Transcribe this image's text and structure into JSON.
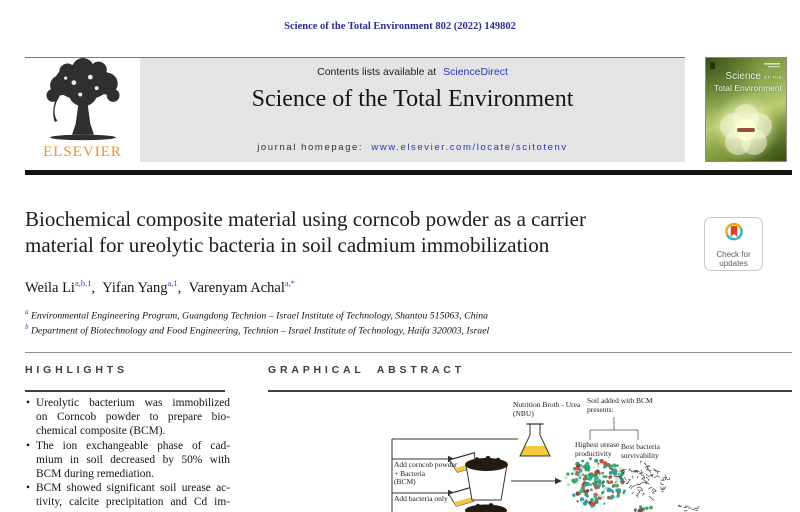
{
  "page": {
    "journal_ref": "Science of the Total Environment 802 (2022) 149802"
  },
  "masthead": {
    "contents_prefix": "Contents lists available at",
    "contents_link": "ScienceDirect",
    "journal_title": "Science of the Total Environment",
    "homepage_prefix": "journal homepage:",
    "homepage_link": "www.elsevier.com/locate/scitotenv",
    "publisher": "ELSEVIER",
    "cover": {
      "title_a": "Science",
      "title_b": "OF THE",
      "title_c": "Total Environment"
    }
  },
  "article": {
    "title_line1": "Biochemical composite material using corncob powder as a carrier",
    "title_line2": "material for ureolytic bacteria in soil cadmium immobilization",
    "authors": [
      {
        "name": "Weila Li",
        "sup": "a,b,1",
        "sep": ","
      },
      {
        "name": "Yifan Yang",
        "sup": "a,1",
        "sep": ","
      },
      {
        "name": "Varenyam Achal",
        "sup": "a,*",
        "sep": ""
      }
    ],
    "affiliations": [
      {
        "sup": "a",
        "text": "Environmental Engineering Program, Guangdong Technion – Israel Institute of Technology, Shantou 515063, China"
      },
      {
        "sup": "b",
        "text": "Department of Biotechnology and Food Engineering, Technion – Israel Institute of Technology, Haifa 320003, Israel"
      }
    ],
    "crossmark_line1": "Check for",
    "crossmark_line2": "updates"
  },
  "highlights": {
    "heading": "HIGHLIGHTS",
    "items": [
      {
        "lines": [
          "Ureolytic bacterium was immobilized",
          "on Corncob powder to prepare bio-",
          "chemical composite (BCM)."
        ]
      },
      {
        "lines": [
          "The ion exchangeable phase of cad-",
          "mium in soil decreased by 50% with",
          "BCM during remediation."
        ]
      },
      {
        "lines": [
          "BCM showed significant soil urease ac-",
          "tivity, calcite precipitation and Cd im-"
        ]
      }
    ]
  },
  "graphical_abstract": {
    "heading": "GRAPHICAL ABSTRACT",
    "nbu_line1": "Nutrition Broth - Urea",
    "nbu_line2": "(NBU)",
    "add_bcm_line1": "Add corncob powder",
    "add_bcm_line2": "+ Bacteria",
    "add_bcm_line3": "(BCM)",
    "add_bacteria": "Add bacteria only",
    "soil_line1": "Soil added with BCM",
    "soil_line2": "presents:",
    "urease_line1": "Highest urease",
    "urease_line2": "productivity",
    "bacteria_line1": "Best bacteria",
    "bacteria_line2": "survivability"
  },
  "colors": {
    "link_blue": "#2735c0",
    "ref_navy": "#2c2c96",
    "elsevier_orange": "#e8932c",
    "masthead_gray": "#e4e4e4",
    "cover_green": "#7d9a3d",
    "flask_liquid": "#f4c83f",
    "soil_brown": "#241a10",
    "ball_green": "#3c9e66",
    "ball_teal": "#2f9f9f",
    "ball_red": "#bf5743",
    "scribble_gray": "#4a4a4a",
    "crossmark_teal": "#27b5c4",
    "crossmark_orange": "#f5a800",
    "crossmark_red": "#d9402a"
  }
}
